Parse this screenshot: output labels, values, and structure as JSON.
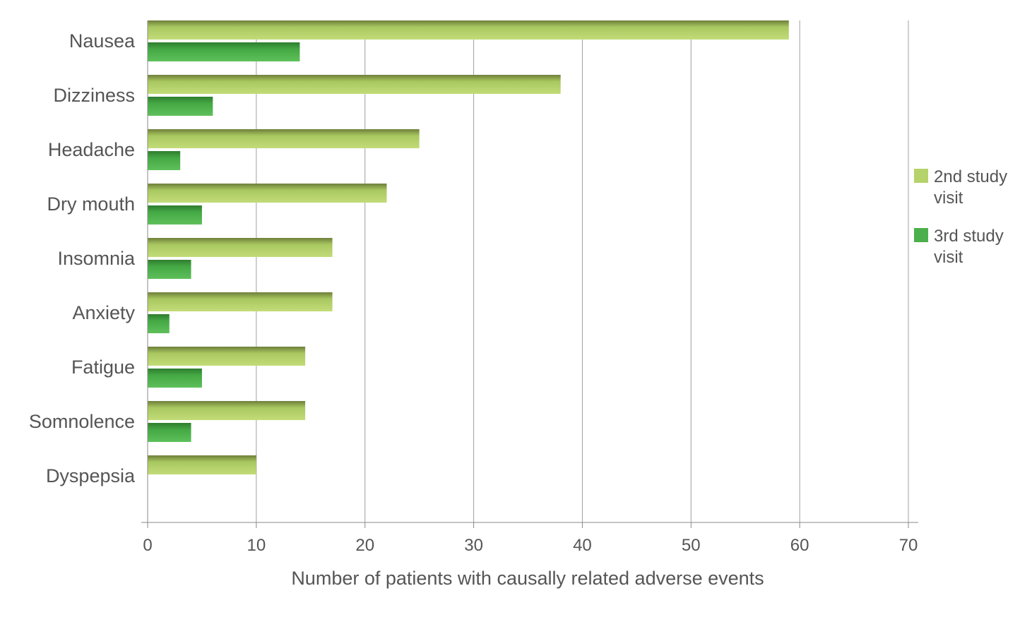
{
  "chart_data": {
    "type": "bar",
    "orientation": "horizontal",
    "categories": [
      "Nausea",
      "Dizziness",
      "Headache",
      "Dry mouth",
      "Insomnia",
      "Anxiety",
      "Fatigue",
      "Somnolence",
      "Dyspepsia"
    ],
    "series": [
      {
        "name": "2nd study visit",
        "color": "#b5d36a",
        "values": [
          59,
          38,
          25,
          22,
          17,
          17,
          14.5,
          14.5,
          10
        ]
      },
      {
        "name": "3rd study visit",
        "color": "#4bb04b",
        "values": [
          14,
          6,
          3,
          5,
          4,
          2,
          5,
          4,
          0
        ]
      }
    ],
    "xlabel": "Number of patients with causally related adverse events",
    "ylabel": "",
    "xlim": [
      0,
      70
    ],
    "xticks": [
      "0",
      "10",
      "20",
      "30",
      "40",
      "50",
      "60",
      "70"
    ],
    "grid": "vertical",
    "legend_position": "right"
  }
}
